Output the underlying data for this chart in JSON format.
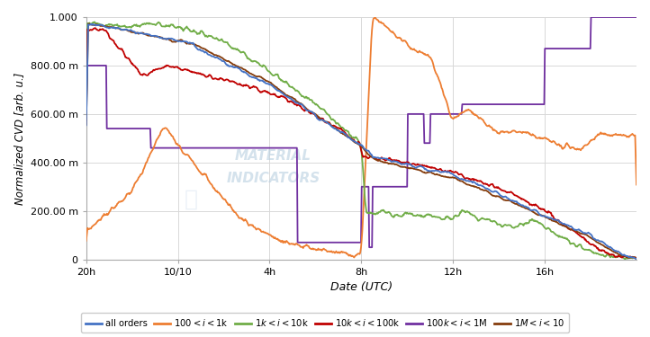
{
  "title": "",
  "xlabel": "Date (UTC)",
  "ylabel": "Normalized CVD [arb. u.]",
  "ylim": [
    0,
    1.0
  ],
  "yticks": [
    0,
    0.2,
    0.4,
    0.6,
    0.8,
    1.0
  ],
  "ytick_labels": [
    "0",
    "200.00 m",
    "400.00 m",
    "600.00 m",
    "800.00 m",
    "1.000"
  ],
  "xtick_labels": [
    "20h",
    "10/10",
    "4h",
    "8h",
    "12h",
    "16h"
  ],
  "xtick_positions": [
    0,
    1,
    2,
    3,
    4,
    5
  ],
  "background_color": "#ffffff",
  "grid_color": "#d8d8d8",
  "legend": [
    {
      "label": "all orders",
      "color": "#4472c4"
    },
    {
      "label": "$100 < i < $1k",
      "color": "#ed7d31"
    },
    {
      "label": "$1k < i < $10k",
      "color": "#70ad47"
    },
    {
      "label": "$10k < i < $100k",
      "color": "#c00000"
    },
    {
      "label": "$100k < i < $1M",
      "color": "#7030a0"
    },
    {
      "label": "$1M < i < $10",
      "color": "#843c0c"
    }
  ],
  "line_width": 1.3
}
